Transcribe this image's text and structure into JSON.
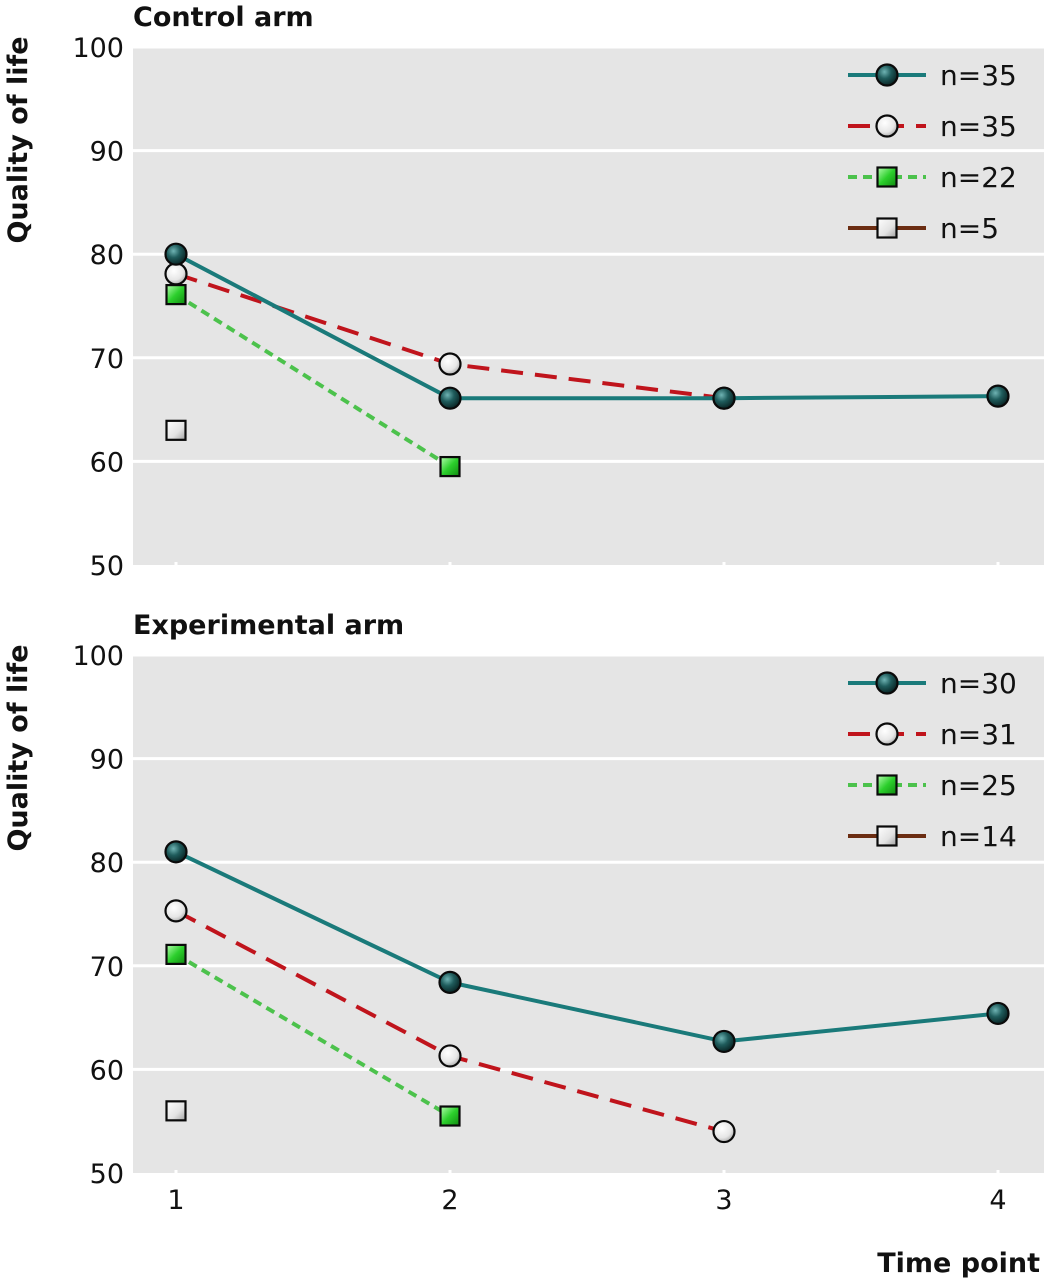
{
  "chart_data": [
    {
      "type": "line",
      "title": "Control arm",
      "ylabel": "Quality of life",
      "xlabel": "",
      "x": [
        1,
        2,
        3,
        4
      ],
      "ylim": [
        50,
        100
      ],
      "yticks": [
        50,
        60,
        70,
        80,
        90,
        100
      ],
      "grid": true,
      "legend_position": "top-right",
      "series": [
        {
          "name": "n=35",
          "color": "#1a7a7a",
          "style": "solid",
          "marker": "circle-dark",
          "values": [
            80,
            66.1,
            66.1,
            66.3
          ]
        },
        {
          "name": "n=35",
          "color": "#c0141c",
          "style": "dashed",
          "marker": "circle-light",
          "values": [
            78.1,
            69.4,
            66.1,
            null
          ]
        },
        {
          "name": "n=22",
          "color": "#4cc24c",
          "style": "dotted",
          "marker": "square-green",
          "values": [
            76.1,
            59.5,
            null,
            null
          ]
        },
        {
          "name": "n=5",
          "color": "#6b2d12",
          "style": "solid",
          "marker": "square-light",
          "values": [
            63,
            null,
            null,
            null
          ]
        }
      ]
    },
    {
      "type": "line",
      "title": "Experimental arm",
      "ylabel": "Quality of life",
      "xlabel": "Time point",
      "x": [
        1,
        2,
        3,
        4
      ],
      "ylim": [
        50,
        100
      ],
      "yticks": [
        50,
        60,
        70,
        80,
        90,
        100
      ],
      "grid": true,
      "legend_position": "top-right",
      "series": [
        {
          "name": "n=30",
          "color": "#1a7a7a",
          "style": "solid",
          "marker": "circle-dark",
          "values": [
            81,
            68.4,
            62.7,
            65.4
          ]
        },
        {
          "name": "n=31",
          "color": "#c0141c",
          "style": "dashed",
          "marker": "circle-light",
          "values": [
            75.3,
            61.3,
            54,
            null
          ]
        },
        {
          "name": "n=25",
          "color": "#4cc24c",
          "style": "dotted",
          "marker": "square-green",
          "values": [
            71.1,
            55.5,
            null,
            null
          ]
        },
        {
          "name": "n=14",
          "color": "#6b2d12",
          "style": "solid",
          "marker": "square-light",
          "values": [
            56,
            null,
            null,
            null
          ]
        }
      ]
    }
  ]
}
